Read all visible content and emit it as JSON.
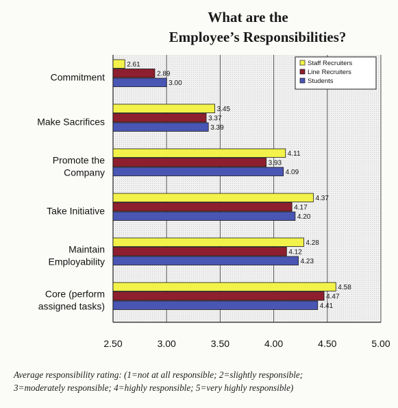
{
  "chart_data": {
    "type": "bar",
    "orientation": "horizontal",
    "title": "What are the Employee’s Responsibilities?",
    "title_lines": [
      "What are the",
      "Employee’s Responsibilities?"
    ],
    "categories": [
      "Commitment",
      "Make Sacrifices",
      "Promote the Company",
      "Take Initiative",
      "Maintain Employability",
      "Core (perform assigned tasks)"
    ],
    "category_lines": [
      [
        "Commitment"
      ],
      [
        "Make Sacrifices"
      ],
      [
        "Promote the",
        "Company"
      ],
      [
        "Take Initiative"
      ],
      [
        "Maintain",
        "Employability"
      ],
      [
        "Core (perform",
        "assigned tasks)"
      ]
    ],
    "series": [
      {
        "name": "Staff Recruiters",
        "color": "#f2f24a",
        "values": [
          2.61,
          3.45,
          4.11,
          4.37,
          4.28,
          4.58
        ],
        "labels": [
          "2.61",
          "3.45",
          "4.11",
          "4.37",
          "4.28",
          "4.58"
        ]
      },
      {
        "name": "Line Recruiters",
        "color": "#8e1f2e",
        "values": [
          2.89,
          3.37,
          3.93,
          4.17,
          4.12,
          4.47
        ],
        "labels": [
          "2.89",
          "3.37",
          "3.93",
          "4.17",
          "4.12",
          "4.47"
        ]
      },
      {
        "name": "Students",
        "color": "#4a56b4",
        "values": [
          3.0,
          3.39,
          4.09,
          4.2,
          4.23,
          4.41
        ],
        "labels": [
          "3.00",
          "3.39",
          "4.09",
          "4.20",
          "4.23",
          "4.41"
        ]
      }
    ],
    "xlim": [
      2.5,
      5.0
    ],
    "xticks": [
      "2.50",
      "3.00",
      "3.50",
      "4.00",
      "4.50",
      "5.00"
    ],
    "xlabel": "",
    "ylabel": "",
    "grid": true,
    "legend_position": "top-right",
    "caption_lines": [
      "Average responsibility rating: (1=not at all responsible; 2=slightly responsible;",
      "3=moderately responsible; 4=highly responsible; 5=very highly responsible)"
    ]
  }
}
